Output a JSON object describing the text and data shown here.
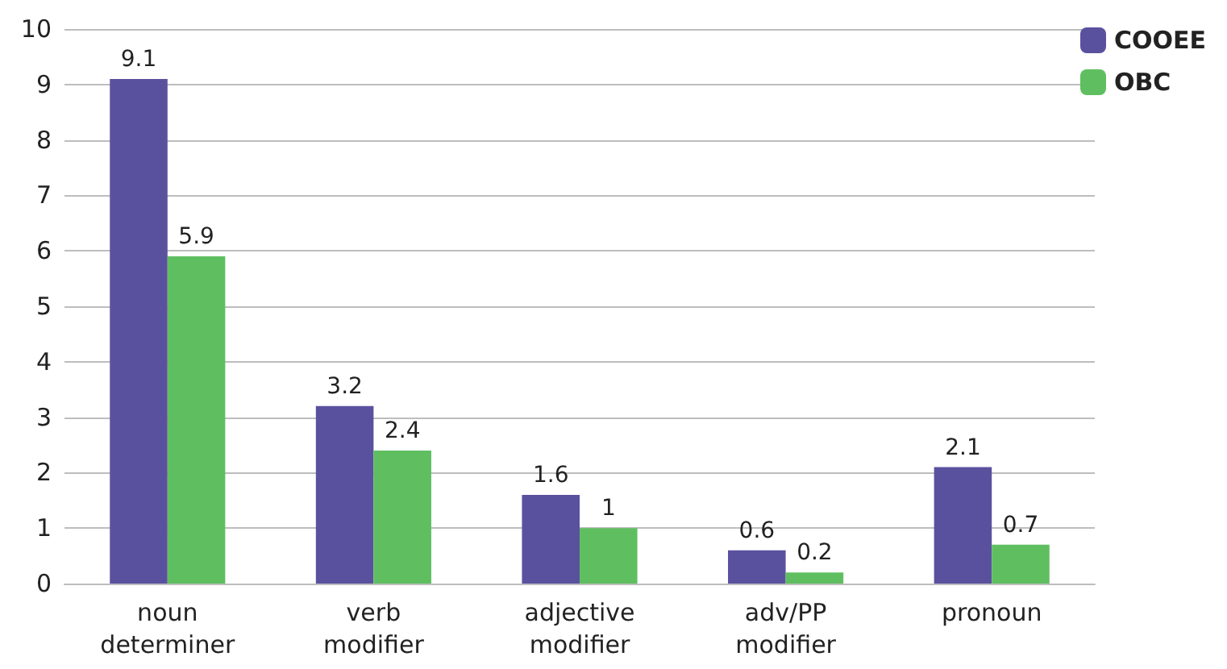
{
  "chart_data": {
    "type": "bar",
    "categories": [
      "noun determiner",
      "verb modifier",
      "adjective modifier",
      "adv/PP modifier",
      "pronoun"
    ],
    "series": [
      {
        "name": "COOEE",
        "color": "#5a519e",
        "values": [
          9.1,
          3.2,
          1.6,
          0.6,
          2.1
        ]
      },
      {
        "name": "OBC",
        "color": "#5fbf60",
        "values": [
          5.9,
          2.4,
          1,
          0.2,
          0.7
        ]
      }
    ],
    "ylim": [
      0,
      10
    ],
    "yticks": [
      0,
      1,
      2,
      3,
      4,
      5,
      6,
      7,
      8,
      9,
      10
    ],
    "grid": "y",
    "legend": "top right",
    "data_labels": true
  }
}
